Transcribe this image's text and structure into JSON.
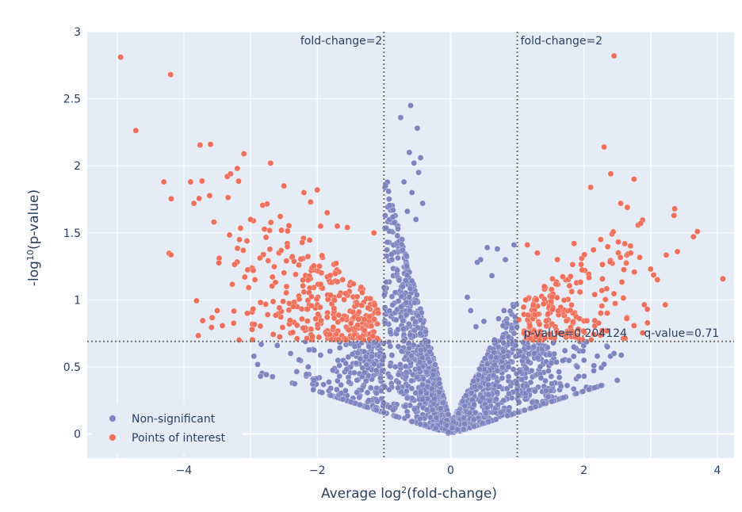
{
  "chart_data": {
    "type": "scatter",
    "title": "",
    "xlabel": {
      "prefix": "Average log",
      "sup": "2",
      "suffix": "(fold-change)"
    },
    "ylabel": {
      "prefix": "-log",
      "sup": "10",
      "suffix": "(p-value)"
    },
    "xlim": [
      -5.45,
      4.25
    ],
    "ylim": [
      -0.18,
      3.0
    ],
    "xticks": [
      -4,
      -2,
      0,
      2,
      4
    ],
    "yticks": [
      0,
      0.5,
      1,
      1.5,
      2,
      2.5,
      3
    ],
    "xtick_labels": [
      "−4",
      "−2",
      "0",
      "2",
      "4"
    ],
    "ytick_labels": [
      "0",
      "0.5",
      "1",
      "1.5",
      "2",
      "2.5",
      "3"
    ],
    "grid": true,
    "legend_position": "bottom-left",
    "thresholds": {
      "fold_change_lines_x": [
        -1,
        1
      ],
      "p_value_line_y": 0.69,
      "labels": {
        "fold_left": "fold-change=2",
        "fold_right": "fold-change=2",
        "p_value": "p-value=0.204124",
        "q_value": "q-value=0.71"
      }
    },
    "series": [
      {
        "name": "Non-significant",
        "color": "#7d85c1",
        "generator": {
          "x_min": -3.0,
          "x_max": 2.6,
          "count": 1800
        },
        "points": [
          [
            -0.6,
            2.45
          ],
          [
            -0.75,
            2.36
          ],
          [
            -0.5,
            2.28
          ],
          [
            -0.45,
            2.06
          ],
          [
            -0.62,
            2.1
          ],
          [
            -0.55,
            2.02
          ],
          [
            -0.48,
            1.95
          ],
          [
            -0.7,
            1.88
          ],
          [
            -0.58,
            1.8
          ],
          [
            -0.42,
            1.72
          ],
          [
            -0.65,
            1.66
          ],
          [
            -0.52,
            1.6
          ],
          [
            -0.95,
            1.43
          ],
          [
            -0.88,
            1.3
          ],
          [
            -0.8,
            1.22
          ],
          [
            -2.85,
            0.43
          ],
          [
            -2.95,
            0.58
          ],
          [
            -2.6,
            0.66
          ],
          [
            -2.4,
            0.6
          ],
          [
            -2.05,
            0.4
          ],
          [
            0.95,
            1.41
          ],
          [
            0.7,
            1.38
          ],
          [
            0.55,
            1.39
          ],
          [
            0.45,
            1.3
          ],
          [
            0.4,
            1.28
          ],
          [
            0.82,
            1.3
          ],
          [
            0.62,
            1.18
          ],
          [
            0.25,
            1.02
          ],
          [
            0.3,
            0.92
          ],
          [
            0.8,
            0.92
          ],
          [
            0.95,
            0.75
          ],
          [
            0.38,
            0.8
          ],
          [
            0.5,
            0.84
          ],
          [
            0.72,
            0.86
          ],
          [
            2.35,
            0.65
          ],
          [
            2.45,
            0.6
          ],
          [
            2.2,
            0.58
          ],
          [
            2.3,
            0.52
          ],
          [
            2.0,
            0.55
          ],
          [
            1.9,
            0.5
          ]
        ]
      },
      {
        "name": "Points of interest",
        "color": "#ef6f5a",
        "generator": {
          "count_left": 330,
          "count_right": 210
        },
        "points": [
          [
            -4.95,
            2.81
          ],
          [
            -4.2,
            2.68
          ],
          [
            -4.3,
            1.88
          ],
          [
            -3.6,
            2.16
          ],
          [
            -3.9,
            1.88
          ],
          [
            -3.85,
            1.72
          ],
          [
            -3.1,
            2.09
          ],
          [
            -2.7,
            2.02
          ],
          [
            -3.0,
            1.6
          ],
          [
            -3.55,
            1.58
          ],
          [
            -3.3,
            1.94
          ],
          [
            -3.2,
            1.98
          ],
          [
            -3.5,
            0.92
          ],
          [
            -3.05,
            0.9
          ],
          [
            -2.85,
            0.98
          ],
          [
            -2.2,
            1.8
          ],
          [
            -2.1,
            1.73
          ],
          [
            -2.0,
            1.82
          ],
          [
            -1.85,
            1.65
          ],
          [
            -1.7,
            1.55
          ],
          [
            -1.55,
            1.54
          ],
          [
            -1.15,
            1.5
          ],
          [
            -2.5,
            1.85
          ],
          [
            -1.95,
            1.55
          ],
          [
            2.45,
            2.82
          ],
          [
            2.3,
            2.14
          ],
          [
            2.4,
            1.94
          ],
          [
            2.1,
            1.84
          ],
          [
            2.55,
            1.72
          ],
          [
            2.65,
            1.69
          ],
          [
            2.75,
            1.9
          ],
          [
            2.85,
            1.57
          ],
          [
            3.35,
            1.63
          ],
          [
            3.7,
            1.51
          ],
          [
            3.4,
            1.36
          ],
          [
            3.1,
            1.15
          ],
          [
            3.0,
            1.23
          ],
          [
            2.95,
            0.93
          ],
          [
            1.15,
            1.41
          ],
          [
            1.3,
            1.35
          ],
          [
            1.6,
            1.3
          ],
          [
            1.85,
            1.42
          ],
          [
            2.25,
            1.45
          ],
          [
            2.7,
            1.35
          ]
        ]
      }
    ]
  }
}
